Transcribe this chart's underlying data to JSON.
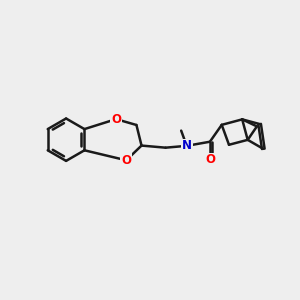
{
  "background_color": "#eeeeee",
  "bond_color": "#1a1a1a",
  "atom_colors": {
    "O": "#ff0000",
    "N": "#0000cc",
    "C": "#1a1a1a"
  },
  "bond_width": 1.8,
  "font_size_atoms": 8.5,
  "figure_size": [
    3.0,
    3.0
  ],
  "dpi": 100,
  "xlim": [
    0,
    10
  ],
  "ylim": [
    0,
    10
  ]
}
